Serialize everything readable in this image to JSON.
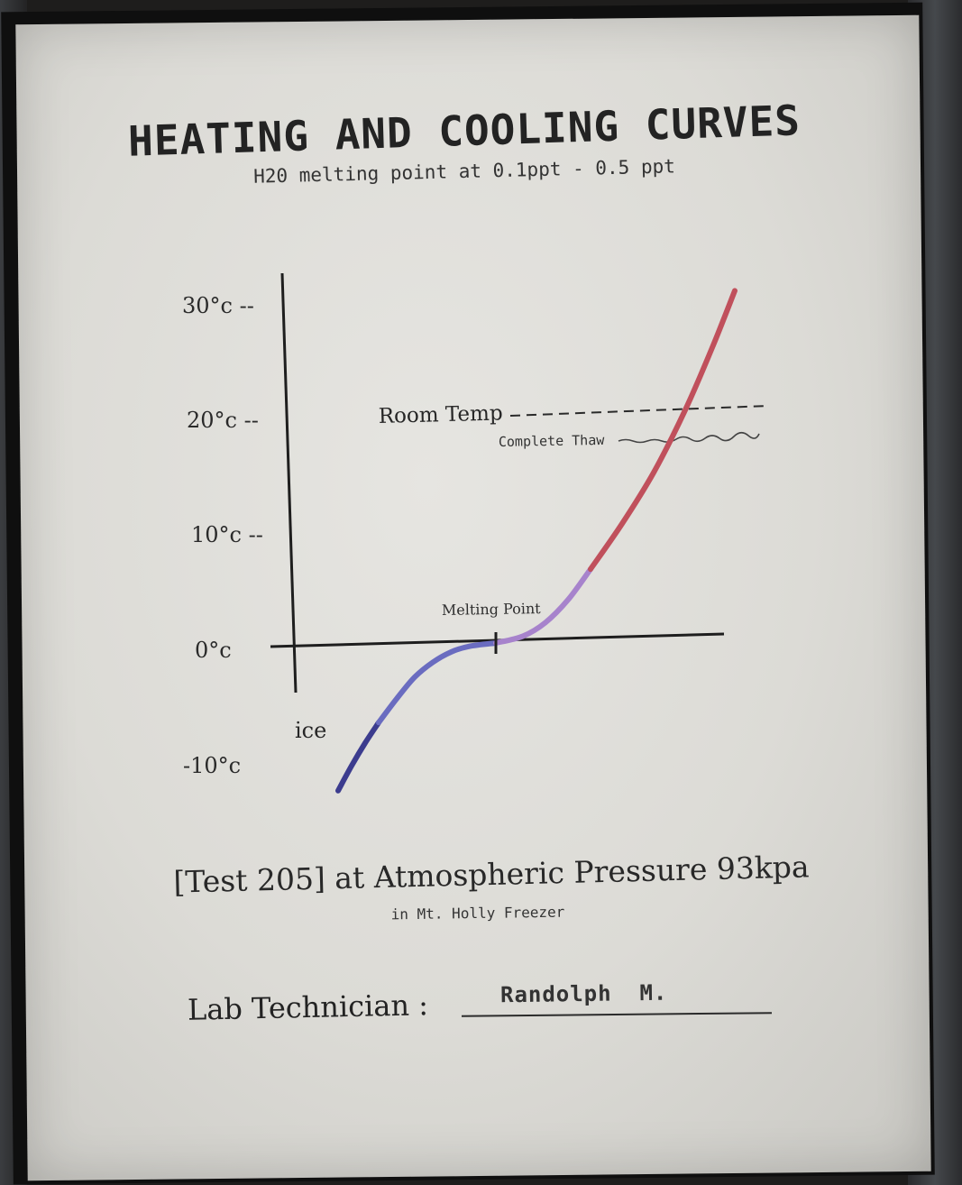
{
  "title": "HEATING AND COOLING CURVES",
  "subtitle": "H20 melting point at 0.1ppt -  0.5 ppt",
  "chart_data": {
    "type": "line",
    "title": "HEATING AND COOLING CURVES",
    "subtitle": "H20 melting point at 0.1ppt -  0.5 ppt",
    "ylabel": "",
    "xlabel": "",
    "ylim": [
      -12,
      32
    ],
    "xlim": [
      -2.1,
      3.3
    ],
    "y_ticks": [
      {
        "value": 30,
        "label": "30°c --"
      },
      {
        "value": 20,
        "label": "20°c --"
      },
      {
        "value": 10,
        "label": "10°c --"
      },
      {
        "value": 0,
        "label": "0°c"
      },
      {
        "value": -10,
        "label": "-10°c"
      }
    ],
    "reference_lines": [
      {
        "name": "Room Temp",
        "y": 20,
        "style": "dashed"
      },
      {
        "name": "Complete Thaw",
        "y": 18,
        "style": "scribbled"
      }
    ],
    "annotations": [
      {
        "text": "Melting Point",
        "x": 0,
        "y": 0
      },
      {
        "text": "ice",
        "x": -1.5,
        "y": -7
      }
    ],
    "series": [
      {
        "name": "ice",
        "color": "#3c3c8e",
        "x": [
          -1.75,
          -1.6,
          -1.45,
          -1.3
        ],
        "y": [
          -13.0,
          -10.8,
          -8.8,
          -7.0
        ]
      },
      {
        "name": "",
        "color": "#6a6cc0",
        "x": [
          -1.3,
          -1.1,
          -0.9,
          -0.7,
          -0.5,
          -0.3,
          0.0
        ],
        "y": [
          -7.0,
          -4.9,
          -3.0,
          -1.7,
          -0.8,
          -0.3,
          0.0
        ]
      },
      {
        "name": "",
        "color": "#a783cc",
        "x": [
          0.0,
          0.3,
          0.55,
          0.8,
          1.05
        ],
        "y": [
          0.0,
          0.6,
          1.8,
          3.8,
          6.5
        ]
      },
      {
        "name": "",
        "color": "#c0505c",
        "x": [
          1.05,
          1.4,
          1.75,
          2.1,
          2.4,
          2.65
        ],
        "y": [
          6.5,
          10.5,
          15.0,
          20.5,
          26.0,
          31.0
        ]
      }
    ]
  },
  "test_line": "[Test 205] at Atmospheric Pressure 93kpa",
  "location": "in Mt. Holly Freezer",
  "technician": {
    "label": "Lab Technician :",
    "name": "Randolph  M."
  }
}
